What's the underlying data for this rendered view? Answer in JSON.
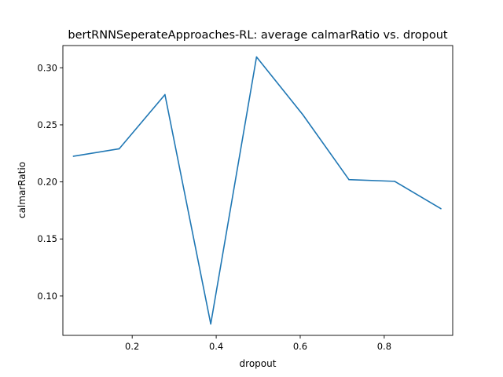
{
  "chart_data": {
    "type": "line",
    "title": "bertRNNSeperateApproaches-RL: average calmarRatio vs. dropout",
    "xlabel": "dropout",
    "ylabel": "calmarRatio",
    "xlim": [
      0.035,
      0.963
    ],
    "ylim": [
      0.0655,
      0.3195
    ],
    "xticks": [
      0.2,
      0.4,
      0.6,
      0.8
    ],
    "xtick_labels": [
      "0.2",
      "0.4",
      "0.6",
      "0.8"
    ],
    "yticks": [
      0.1,
      0.15,
      0.2,
      0.25,
      0.3
    ],
    "ytick_labels": [
      "0.10",
      "0.15",
      "0.20",
      "0.25",
      "0.30"
    ],
    "grid": false,
    "legend": "none",
    "series": [
      {
        "color": "#1f77b4",
        "x": [
          0.06,
          0.169,
          0.278,
          0.387,
          0.496,
          0.606,
          0.716,
          0.825,
          0.935
        ],
        "y": [
          0.2225,
          0.229,
          0.2765,
          0.0755,
          0.3095,
          0.259,
          0.202,
          0.2005,
          0.1765
        ]
      }
    ]
  }
}
